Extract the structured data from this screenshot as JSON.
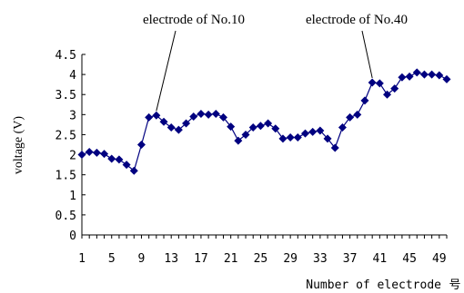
{
  "chart_data": {
    "type": "line",
    "xlabel": "Number of electrode",
    "xlabel_suffix": "号",
    "ylabel": "voltage (V)",
    "ylim": [
      0,
      4.5
    ],
    "xlim": [
      1,
      50
    ],
    "y_ticks": [
      0,
      0.5,
      1,
      1.5,
      2,
      2.5,
      3,
      3.5,
      4,
      4.5
    ],
    "y_tick_labels": [
      "0",
      "0.5",
      "1",
      "1.5",
      "2",
      "2.5",
      "3",
      "3.5",
      "4",
      "4.5"
    ],
    "x_tick_labels": [
      "1",
      "5",
      "9",
      "13",
      "17",
      "21",
      "25",
      "29",
      "33",
      "37",
      "41",
      "45",
      "49"
    ],
    "grid": false,
    "series_color": "#000080",
    "series": [
      {
        "x": [
          1,
          2,
          3,
          4,
          5,
          6,
          7,
          8,
          9,
          10,
          11,
          12,
          13,
          14,
          15,
          16,
          17,
          18,
          19,
          20,
          21,
          22,
          23,
          24,
          25,
          26,
          27,
          28,
          29,
          30,
          31,
          32,
          33,
          34,
          35,
          36,
          37,
          38,
          39,
          40,
          41,
          42,
          43,
          44,
          45,
          46,
          47,
          48,
          49,
          50
        ],
        "values": [
          2.0,
          2.07,
          2.05,
          2.02,
          1.9,
          1.88,
          1.75,
          1.6,
          2.25,
          2.93,
          2.98,
          2.82,
          2.68,
          2.62,
          2.78,
          2.95,
          3.02,
          3.0,
          3.02,
          2.93,
          2.7,
          2.35,
          2.5,
          2.68,
          2.72,
          2.78,
          2.65,
          2.4,
          2.43,
          2.43,
          2.53,
          2.57,
          2.6,
          2.4,
          2.17,
          2.68,
          2.93,
          3.0,
          3.35,
          3.8,
          3.78,
          3.5,
          3.65,
          3.93,
          3.95,
          4.05,
          4.0,
          4.0,
          3.98,
          3.88
        ]
      }
    ],
    "annotations": [
      {
        "text": "electrode of  No.10",
        "x": 11,
        "y": 2.98
      },
      {
        "text": "electrode of  No.40",
        "x": 40,
        "y": 3.8
      }
    ]
  }
}
